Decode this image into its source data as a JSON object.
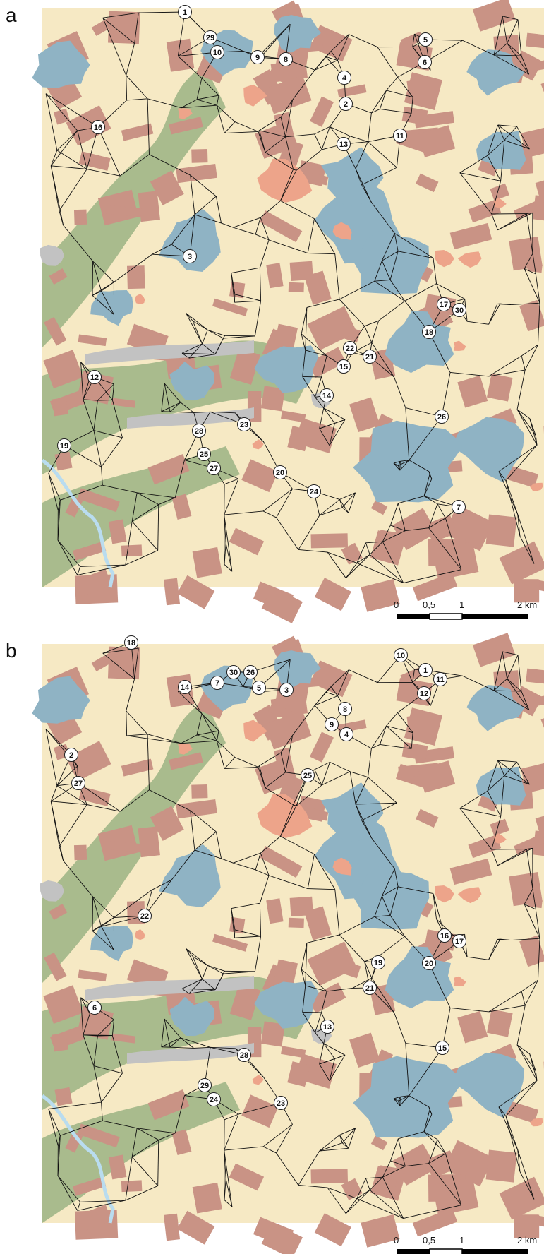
{
  "figure": {
    "panels": [
      {
        "letter": "a",
        "sites": [
          "1",
          "2",
          "3",
          "4",
          "5",
          "6",
          "7",
          "8",
          "9",
          "10",
          "11",
          "12",
          "13",
          "14",
          "15",
          "16",
          "17",
          "18",
          "19",
          "20",
          "21",
          "22",
          "23",
          "24",
          "25",
          "26",
          "27",
          "28",
          "29",
          "30"
        ],
        "scale": {
          "ticks": [
            "0",
            "0,5",
            "1",
            "2 km"
          ]
        }
      },
      {
        "letter": "b",
        "sites": [
          "1",
          "2",
          "3",
          "4",
          "5",
          "6",
          "7",
          "8",
          "9",
          "10",
          "11",
          "12",
          "13",
          "14",
          "15",
          "16",
          "17",
          "18",
          "19",
          "20",
          "21",
          "22",
          "23",
          "24",
          "25",
          "26",
          "27",
          "28",
          "29",
          "30"
        ],
        "scale": {
          "ticks": [
            "0",
            "0,5",
            "1",
            "2 km"
          ]
        }
      }
    ],
    "colors": {
      "background_cream": "#f6e9c4",
      "water_blue": "#8fb3c4",
      "field_brown": "#c99385",
      "urban_salmon": "#eda48a",
      "forest_green": "#a9bb8d",
      "grey_area": "#c2c2c2",
      "river": "#b9dcef",
      "network_lines": "#111111",
      "marker_fill": "#ffffff"
    }
  }
}
